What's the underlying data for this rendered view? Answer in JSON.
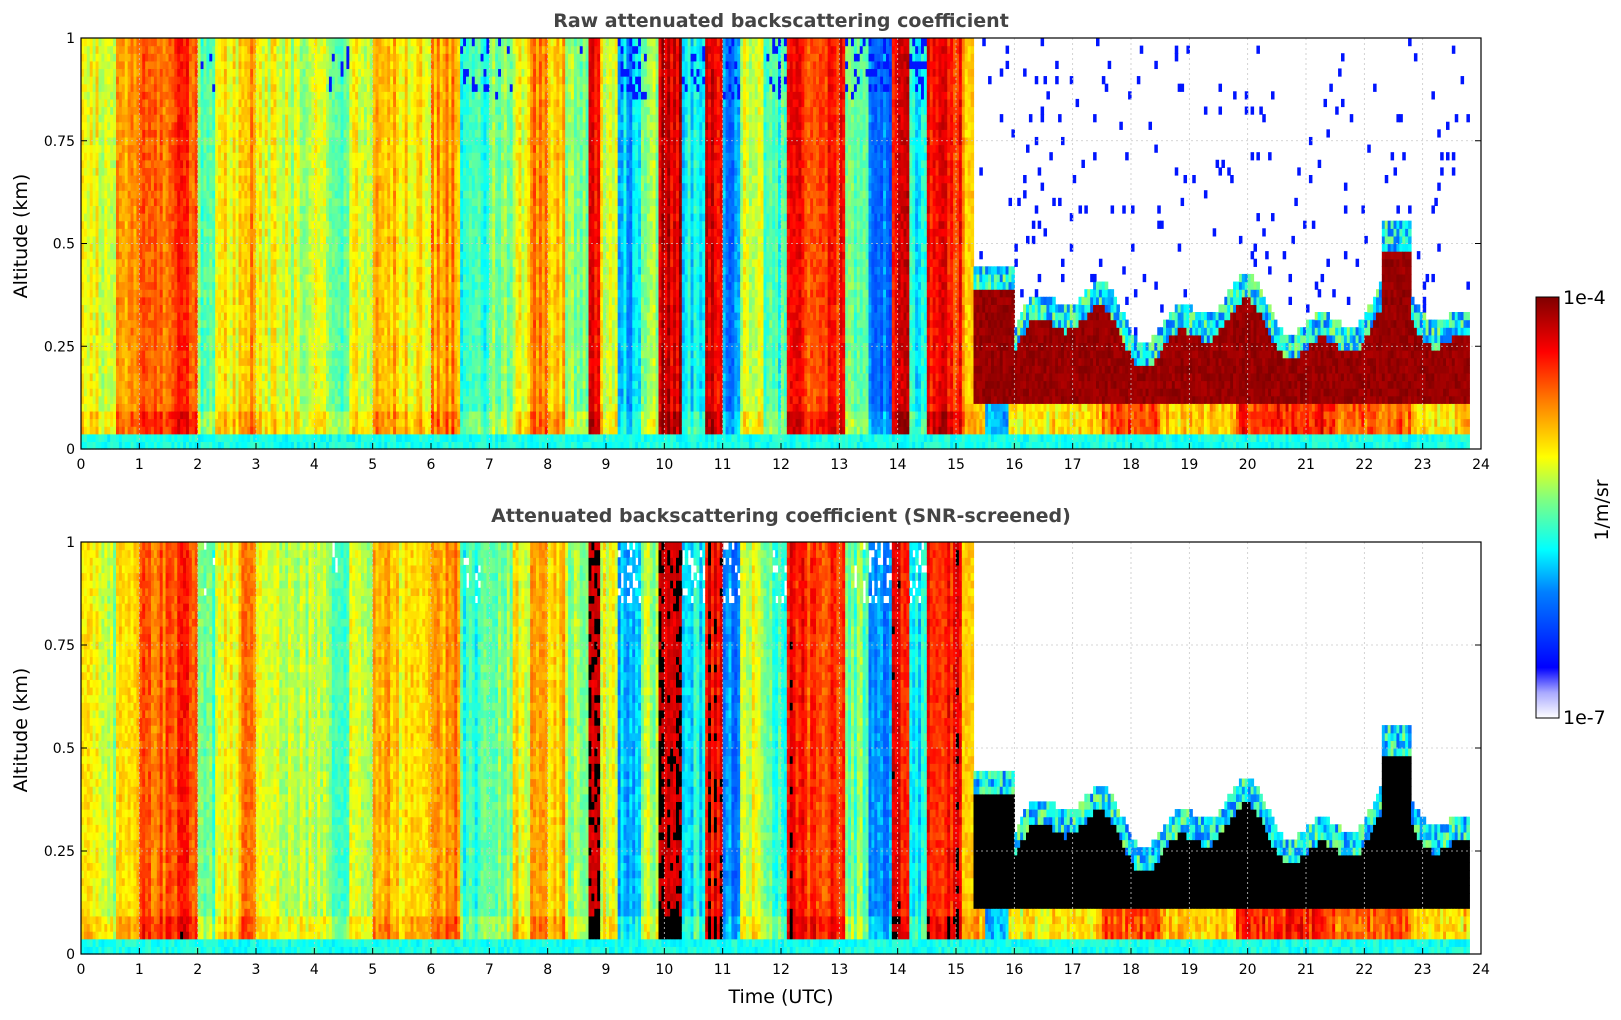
{
  "chart_data": [
    {
      "type": "heatmap",
      "title": "Raw attenuated backscattering coefficient",
      "ylabel": "Altitude (km)",
      "xlabel": "",
      "xlim": [
        0,
        24
      ],
      "ylim": [
        0,
        1
      ],
      "x_ticks": [
        "0",
        "1",
        "2",
        "3",
        "4",
        "5",
        "6",
        "7",
        "8",
        "9",
        "10",
        "11",
        "12",
        "13",
        "14",
        "15",
        "16",
        "17",
        "18",
        "19",
        "20",
        "21",
        "22",
        "23",
        "24"
      ],
      "y_ticks": [
        "0",
        "0.25",
        "0.5",
        "0.75",
        "1"
      ],
      "grid": true,
      "screened": false
    },
    {
      "type": "heatmap",
      "title": "Attenuated backscattering coefficient (SNR-screened)",
      "ylabel": "Altitude (km)",
      "xlabel": "Time (UTC)",
      "xlim": [
        0,
        24
      ],
      "ylim": [
        0,
        1
      ],
      "x_ticks": [
        "0",
        "1",
        "2",
        "3",
        "4",
        "5",
        "6",
        "7",
        "8",
        "9",
        "10",
        "11",
        "12",
        "13",
        "14",
        "15",
        "16",
        "17",
        "18",
        "19",
        "20",
        "21",
        "22",
        "23",
        "24"
      ],
      "y_ticks": [
        "0",
        "0.25",
        "0.5",
        "0.75",
        "1"
      ],
      "grid": true,
      "screened": true
    }
  ],
  "colorbar": {
    "label": "1/m/sr",
    "max_label": "1e-4",
    "min_label": "1e-7",
    "scale": "log",
    "range": [
      1e-07,
      0.0001
    ],
    "colormap": "jet"
  },
  "colors": {
    "title": "#444444",
    "grid": "#c8c8c8",
    "saturated": "#000000"
  }
}
